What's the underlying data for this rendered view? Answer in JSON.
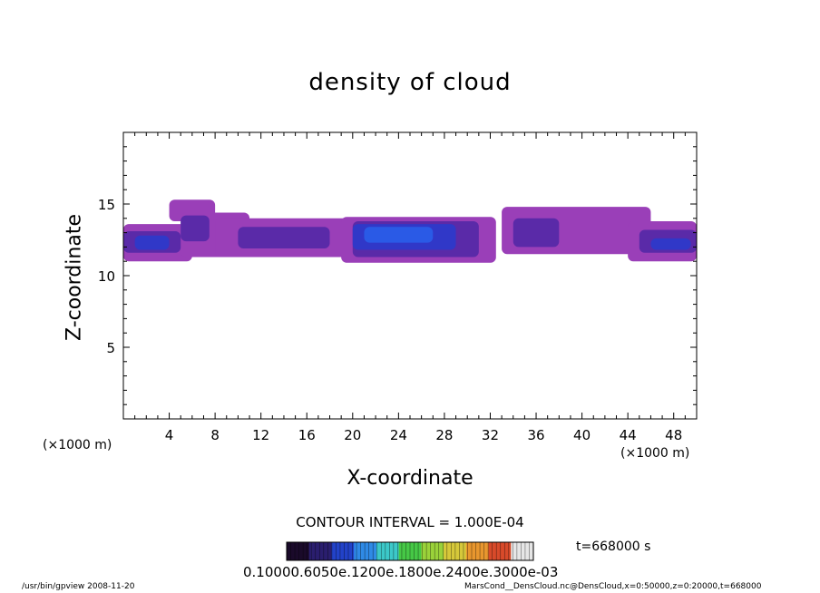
{
  "chart_data": {
    "type": "heatmap",
    "title": "density of cloud",
    "xlabel": "X-coordinate",
    "ylabel": "Z-coordinate",
    "x_unit_label": "(×1000 m)",
    "xlim": [
      0,
      50
    ],
    "ylim": [
      0,
      20
    ],
    "x_ticks": [
      4,
      8,
      12,
      16,
      20,
      24,
      28,
      32,
      36,
      40,
      44,
      48
    ],
    "y_ticks": [
      5,
      10,
      15
    ],
    "contour_interval": "CONTOUR INTERVAL = 1.000E-04",
    "time_label": "t=668000 s",
    "colorbar_labels": "0.10000.6050e.1200e.1800e.2400e.3000e-03",
    "colorbar_colors": [
      "#1a0a2a",
      "#2a1e6e",
      "#2242c8",
      "#2f8ae6",
      "#3cc8c8",
      "#46c846",
      "#9ad23a",
      "#d6c83a",
      "#e8962e",
      "#d84a2a",
      "#e6e6e6"
    ],
    "colors": {
      "level1": "#9a3fb8",
      "level2": "#5a2aa8",
      "level3": "#3038c8",
      "level4": "#2a5ae6"
    },
    "cloud_blobs": [
      {
        "level": 1,
        "x0": 0.0,
        "x1": 6.0,
        "z0": 11.0,
        "z1": 13.6
      },
      {
        "level": 1,
        "x0": 4.0,
        "x1": 8.0,
        "z0": 13.8,
        "z1": 15.3
      },
      {
        "level": 1,
        "x0": 5.0,
        "x1": 11.0,
        "z0": 11.3,
        "z1": 14.4
      },
      {
        "level": 1,
        "x0": 8.0,
        "x1": 20.0,
        "z0": 11.3,
        "z1": 14.0
      },
      {
        "level": 1,
        "x0": 19.0,
        "x1": 32.5,
        "z0": 10.9,
        "z1": 14.1
      },
      {
        "level": 1,
        "x0": 33.0,
        "x1": 46.0,
        "z0": 11.5,
        "z1": 14.8
      },
      {
        "level": 1,
        "x0": 44.0,
        "x1": 50.0,
        "z0": 11.0,
        "z1": 13.8
      },
      {
        "level": 2,
        "x0": 0.0,
        "x1": 5.0,
        "z0": 11.6,
        "z1": 13.1
      },
      {
        "level": 2,
        "x0": 5.0,
        "x1": 7.5,
        "z0": 12.4,
        "z1": 14.2
      },
      {
        "level": 2,
        "x0": 10.0,
        "x1": 18.0,
        "z0": 11.9,
        "z1": 13.4
      },
      {
        "level": 2,
        "x0": 20.0,
        "x1": 31.0,
        "z0": 11.3,
        "z1": 13.8
      },
      {
        "level": 2,
        "x0": 34.0,
        "x1": 38.0,
        "z0": 12.0,
        "z1": 14.0
      },
      {
        "level": 2,
        "x0": 45.0,
        "x1": 50.0,
        "z0": 11.6,
        "z1": 13.2
      },
      {
        "level": 3,
        "x0": 1.0,
        "x1": 4.0,
        "z0": 11.8,
        "z1": 12.8
      },
      {
        "level": 3,
        "x0": 20.0,
        "x1": 29.0,
        "z0": 11.8,
        "z1": 13.6
      },
      {
        "level": 3,
        "x0": 46.0,
        "x1": 49.5,
        "z0": 11.8,
        "z1": 12.6
      },
      {
        "level": 4,
        "x0": 21.0,
        "x1": 27.0,
        "z0": 12.3,
        "z1": 13.4
      }
    ]
  },
  "footer": {
    "left": "/usr/bin/gpview   2008-11-20",
    "right": "MarsCond__DensCloud.nc@DensCloud,x=0:50000,z=0:20000,t=668000"
  }
}
